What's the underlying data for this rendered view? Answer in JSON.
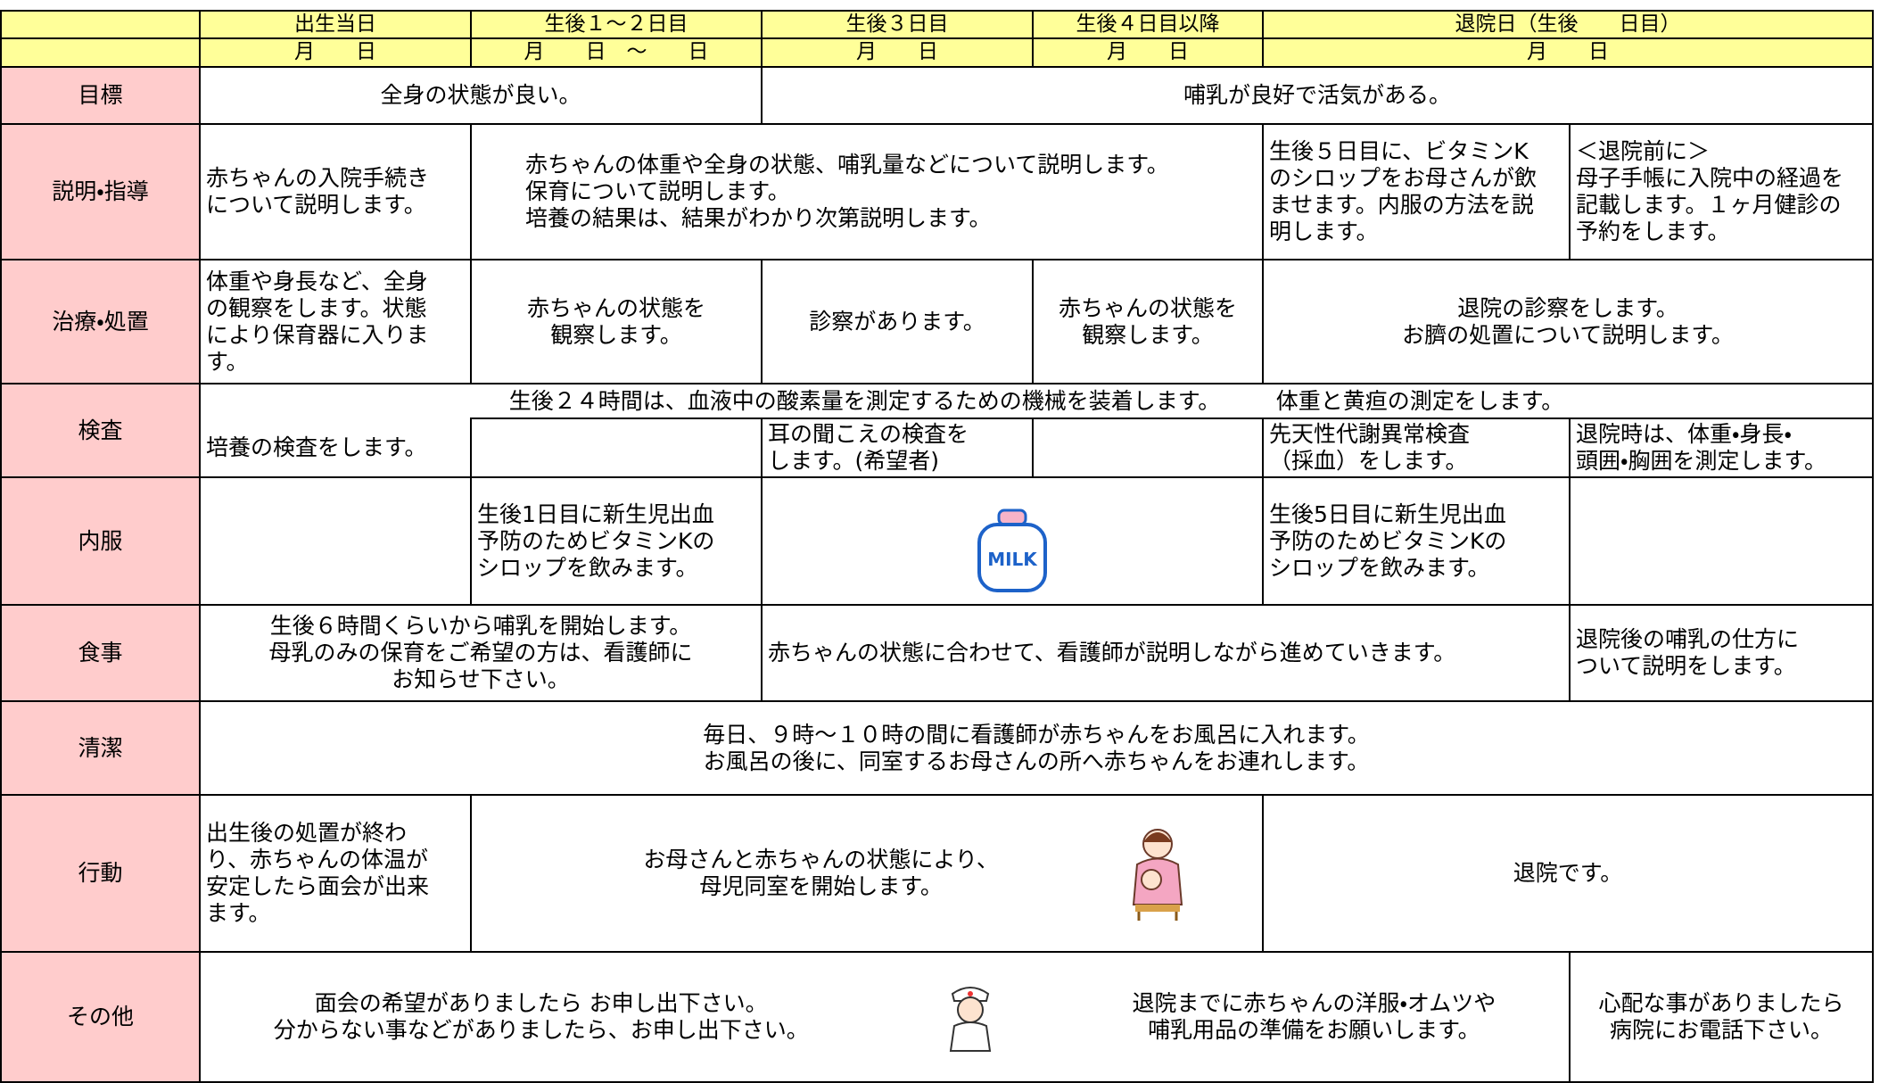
{
  "header": {
    "columns": [
      "出生当日",
      "生後１～２日目",
      "生後３日目",
      "生後４日目以降",
      "退院日（生後　　日目）"
    ],
    "dates": [
      "月　　日",
      "月　　日　～　　日",
      "月　　日",
      "月　　日",
      "月　　日"
    ]
  },
  "rows": [
    {
      "label": "目標",
      "cells": [
        "全身の状態が良い。",
        "哺乳が良好で活気がある。"
      ]
    },
    {
      "label": "説明・指導",
      "cells": [
        "赤ちゃんの入院手続き\nについて説明します。",
        "赤ちゃんの体重や全身の状態、哺乳量などについて説明します。\n保育について説明します。\n培養の結果は、結果がわかり次第説明します。",
        "生後５日目に、ビタミンK\nのシロップをお母さんが飲\nませます。内服の方法を説\n明します。",
        "＜退院前に＞\n母子手帳に入院中の経過を\n記載します。１ヶ月健診の\n予約をします。"
      ]
    },
    {
      "label": "治療・処置",
      "cells": [
        "体重や身長など、全身\nの観察をします。状態\nにより保育器に入りま\nす。",
        "赤ちゃんの状態を\n観察します。",
        "診察があります。",
        "赤ちゃんの状態を\n観察します。",
        "退院の診察をします。\nお臍の処置について説明します。"
      ]
    },
    {
      "label": "検査",
      "cells": [
        "生後２４時間は、血液中の酸素量を測定するための機械を装着します。　　　体重と黄疸の測定をします。"
      ],
      "sub_cells": [
        "培養の検査をします。",
        "耳の聞こえの検査を\nします。(希望者)",
        "先天性代謝異常検査\n（採血）をします。",
        "退院時は、体重・身長・\n頭囲・胸囲を測定します。"
      ]
    },
    {
      "label": "内服",
      "cells": [
        "生後1日目に新生児出血\n予防のためビタミンKの\nシロップを飲みます。",
        "生後5日目に新生児出血\n予防のためビタミンKの\nシロップを飲みます。"
      ],
      "image_text": "MILK"
    },
    {
      "label": "食事",
      "cells": [
        "生後６時間くらいから哺乳を開始します。\n母乳のみの保育をご希望の方は、看護師に\nお知らせ下さい。",
        "赤ちゃんの状態に合わせて、看護師が説明しながら進めていきます。",
        "退院後の哺乳の仕方に\nついて説明をします。"
      ]
    },
    {
      "label": "清潔",
      "cells": [
        "毎日、９時～１０時の間に看護師が赤ちゃんをお風呂に入れます。\nお風呂の後に、同室するお母さんの所へ赤ちゃんをお連れします。"
      ]
    },
    {
      "label": "行動",
      "cells": [
        "出生後の処置が終わ\nり、赤ちゃんの体温が\n安定したら面会が出来\nます。",
        "お母さんと赤ちゃんの状態により、\n母児同室を開始します。",
        "退院です。"
      ]
    },
    {
      "label": "その他",
      "cells": [
        "面会の希望がありましたら お申し出下さい。\n分からない事などがありましたら、お申し出下さい。",
        "退院までに赤ちゃんの洋服・オムツや\n哺乳用品の準備をお願いします。",
        "心配な事がありましたら\n病院にお電話下さい。"
      ]
    }
  ]
}
